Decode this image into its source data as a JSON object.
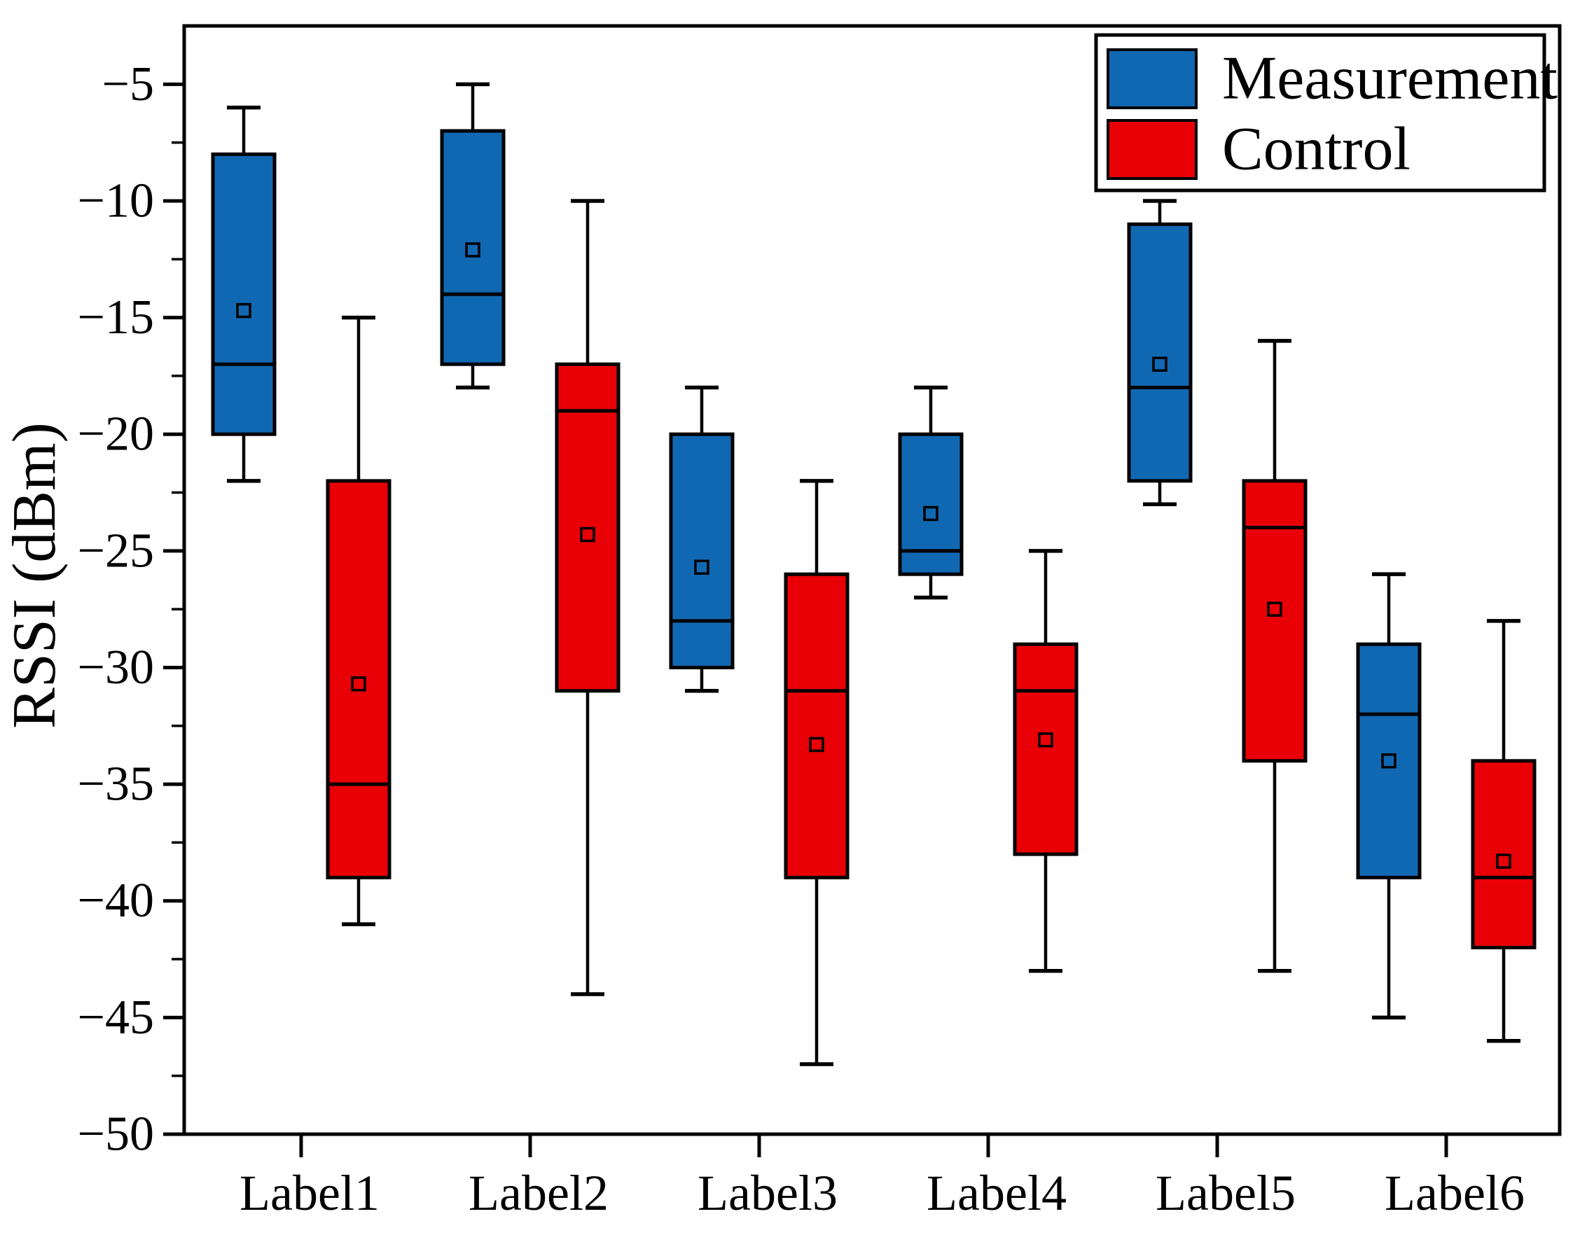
{
  "figure": {
    "kind": "box-plot-figure",
    "background": "#ffffff"
  },
  "chart_data": {
    "type": "boxplot",
    "title": "",
    "xlabel": "",
    "ylabel": "RSSI (dBm)",
    "ylim": [
      -50,
      -2.5
    ],
    "yticks_major": [
      -5,
      -10,
      -15,
      -20,
      -25,
      -30,
      -35,
      -40,
      -45,
      -50
    ],
    "ytick_minor_step": 2.5,
    "grid": false,
    "categories": [
      "Label1",
      "Label2",
      "Label3",
      "Label4",
      "Label5",
      "Label6"
    ],
    "series": [
      {
        "name": "Measurement",
        "color": "#1168b2",
        "boxes": [
          {
            "low": -22,
            "q1": -20,
            "median": -17,
            "q3": -8,
            "high": -6,
            "mean": -14.7
          },
          {
            "low": -18,
            "q1": -17,
            "median": -14,
            "q3": -7,
            "high": -5,
            "mean": -12.1
          },
          {
            "low": -31,
            "q1": -30,
            "median": -28,
            "q3": -20,
            "high": -18,
            "mean": -25.7
          },
          {
            "low": -27,
            "q1": -26,
            "median": -25,
            "q3": -20,
            "high": -18,
            "mean": -23.4
          },
          {
            "low": -23,
            "q1": -22,
            "median": -18,
            "q3": -11,
            "high": -10,
            "mean": -17.0
          },
          {
            "low": -45,
            "q1": -39,
            "median": -32,
            "q3": -29,
            "high": -26,
            "mean": -34.0
          }
        ]
      },
      {
        "name": "Control",
        "color": "#e90007",
        "boxes": [
          {
            "low": -41,
            "q1": -39,
            "median": -35,
            "q3": -22,
            "high": -15,
            "mean": -30.7
          },
          {
            "low": -44,
            "q1": -31,
            "median": -19,
            "q3": -17,
            "high": -10,
            "mean": -24.3
          },
          {
            "low": -47,
            "q1": -39,
            "median": -31,
            "q3": -26,
            "high": -22,
            "mean": -33.3
          },
          {
            "low": -43,
            "q1": -38,
            "median": -31,
            "q3": -29,
            "high": -25,
            "mean": -33.1
          },
          {
            "low": -43,
            "q1": -34,
            "median": -24,
            "q3": -22,
            "high": -16,
            "mean": -27.5
          },
          {
            "low": -46,
            "q1": -42,
            "median": -39,
            "q3": -34,
            "high": -28,
            "mean": -38.3
          }
        ]
      }
    ],
    "legend": {
      "position": "top-right",
      "entries": [
        {
          "label": "Measurement",
          "color": "#1168b2"
        },
        {
          "label": "Control",
          "color": "#e90007"
        }
      ]
    },
    "marker_note": "open square marks series mean inside each box"
  }
}
